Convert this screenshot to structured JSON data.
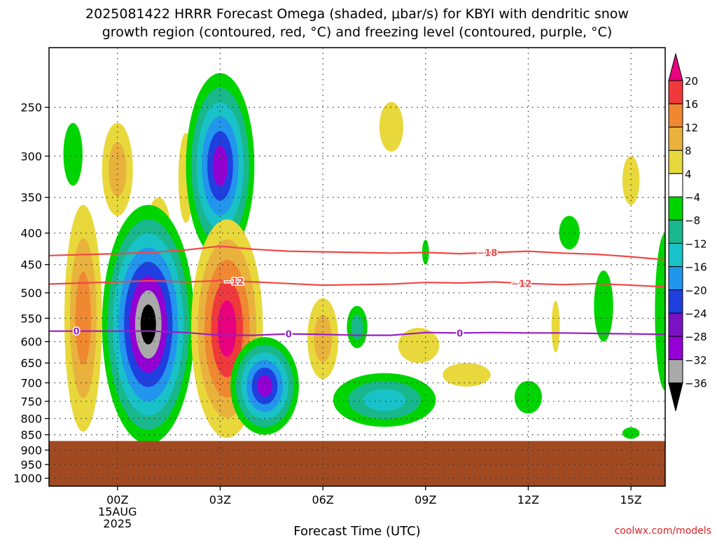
{
  "chart_data": {
    "type": "heatmap",
    "title_line1": "2025081422 HRRR Forecast Omega (shaded, μbar/s) for KBYI with dendritic snow",
    "title_line2": "growth region (contoured, red, °C) and freezing level (contoured, purple, °C)",
    "xlabel": "Forecast Time (UTC)",
    "credit": "coolwx.com/models",
    "x_ticks": [
      {
        "hour": 0,
        "label": "00Z"
      },
      {
        "hour": 3,
        "label": "03Z"
      },
      {
        "hour": 6,
        "label": "06Z"
      },
      {
        "hour": 9,
        "label": "09Z"
      },
      {
        "hour": 12,
        "label": "12Z"
      },
      {
        "hour": 15,
        "label": "15Z"
      }
    ],
    "x_date_lines": [
      "15AUG",
      "2025"
    ],
    "x_range_hours": [
      -2,
      16
    ],
    "y_ticks": [
      250,
      300,
      350,
      400,
      450,
      500,
      550,
      600,
      650,
      700,
      750,
      800,
      850,
      900,
      950,
      1000
    ],
    "y_range_hpa": [
      200,
      1030
    ],
    "y_scale": "log-pressure (reversed)",
    "ground_top_hpa": 870,
    "colorbar": {
      "labels": [
        "20",
        "16",
        "12",
        "8",
        "4",
        "−4",
        "−8",
        "−12",
        "−16",
        "−20",
        "−24",
        "−28",
        "−32",
        "−36"
      ],
      "colors": [
        "#e8007f",
        "#f0393c",
        "#ef8830",
        "#e9b23d",
        "#e8d83b",
        "#ffffff",
        "#00d400",
        "#18b88c",
        "#18c2c8",
        "#2295ec",
        "#1f3fe0",
        "#7a12c4",
        "#9400d3",
        "#a9a9a9",
        "#000000"
      ]
    },
    "contours": [
      {
        "kind": "dendritic",
        "label": "−18",
        "color": "#f04848",
        "points": [
          [
            -2,
            435
          ],
          [
            0,
            432
          ],
          [
            1,
            430
          ],
          [
            2,
            426
          ],
          [
            3,
            420
          ],
          [
            4,
            425
          ],
          [
            5,
            428
          ],
          [
            6,
            429
          ],
          [
            7,
            430
          ],
          [
            8,
            431
          ],
          [
            9,
            430
          ],
          [
            10,
            432
          ],
          [
            11,
            430
          ],
          [
            12,
            428
          ],
          [
            13,
            431
          ],
          [
            14,
            433
          ],
          [
            15,
            437
          ],
          [
            16,
            442
          ]
        ]
      },
      {
        "kind": "dendritic",
        "label": "−12",
        "color": "#f04848",
        "points": [
          [
            -2,
            484
          ],
          [
            0,
            480
          ],
          [
            1,
            478
          ],
          [
            2,
            480
          ],
          [
            3,
            478
          ],
          [
            4,
            480
          ],
          [
            5,
            483
          ],
          [
            6,
            486
          ],
          [
            7,
            485
          ],
          [
            8,
            484
          ],
          [
            9,
            481
          ],
          [
            10,
            482
          ],
          [
            11,
            480
          ],
          [
            12,
            483
          ],
          [
            13,
            485
          ],
          [
            14,
            483
          ],
          [
            15,
            486
          ],
          [
            16,
            489
          ]
        ]
      },
      {
        "kind": "freezing",
        "label": "0",
        "color": "#9a1fc4",
        "points": [
          [
            -2,
            577
          ],
          [
            0,
            577
          ],
          [
            1,
            577
          ],
          [
            2,
            580
          ],
          [
            3,
            586
          ],
          [
            4,
            586
          ],
          [
            5,
            583
          ],
          [
            6,
            584
          ],
          [
            7,
            586
          ],
          [
            8,
            586
          ],
          [
            9,
            580
          ],
          [
            10,
            581
          ],
          [
            11,
            580
          ],
          [
            12,
            581
          ],
          [
            13,
            581
          ],
          [
            14,
            582
          ],
          [
            15,
            583
          ],
          [
            16,
            584
          ]
        ]
      }
    ],
    "contour_labels": [
      {
        "line": 0,
        "hour": 10.8,
        "text": "−18"
      },
      {
        "line": 1,
        "hour": 3.4,
        "text": "−12"
      },
      {
        "line": 1,
        "hour": 11.8,
        "text": "−12"
      },
      {
        "line": 2,
        "hour": -1.2,
        "text": "0"
      },
      {
        "line": 2,
        "hour": 5.0,
        "text": "0"
      },
      {
        "line": 2,
        "hour": 10.0,
        "text": "0"
      }
    ],
    "omega_blobs": [
      {
        "hour": -1.3,
        "p": 300,
        "rh": 0.28,
        "rp": 35,
        "levels": [
          -8
        ]
      },
      {
        "hour": 0.0,
        "p": 320,
        "rh": 0.45,
        "rp": 55,
        "levels": [
          4,
          8
        ]
      },
      {
        "hour": 1.2,
        "p": 400,
        "rh": 0.35,
        "rp": 50,
        "levels": [
          4
        ]
      },
      {
        "hour": 2.0,
        "p": 330,
        "rh": 0.22,
        "rp": 55,
        "levels": [
          4
        ]
      },
      {
        "hour": -1.0,
        "p": 600,
        "rh": 0.55,
        "rp": 240,
        "levels": [
          4,
          8,
          12
        ]
      },
      {
        "hour": 0.9,
        "p": 620,
        "rh": 1.35,
        "rp": 260,
        "levels": [
          -8,
          -12,
          -16,
          -20,
          -24,
          -28,
          -32,
          -36
        ]
      },
      {
        "hour": 3.0,
        "p": 330,
        "rh": 1.0,
        "rp": 110,
        "levels": [
          -8,
          -12,
          -16,
          -20,
          -24,
          -28
        ]
      },
      {
        "hour": 3.2,
        "p": 620,
        "rh": 1.05,
        "rp": 240,
        "levels": [
          4,
          8,
          12,
          16,
          20
        ]
      },
      {
        "hour": 4.3,
        "p": 720,
        "rh": 1.0,
        "rp": 130,
        "levels": [
          -8,
          -12,
          -16,
          -20,
          -24,
          -28
        ]
      },
      {
        "hour": 6.0,
        "p": 600,
        "rh": 0.45,
        "rp": 90,
        "levels": [
          4,
          8
        ]
      },
      {
        "hour": 7.0,
        "p": 570,
        "rh": 0.3,
        "rp": 45,
        "levels": [
          -8,
          -12
        ]
      },
      {
        "hour": 7.8,
        "p": 750,
        "rh": 1.5,
        "rp": 75,
        "levels": [
          -8,
          -12,
          -16
        ]
      },
      {
        "hour": 8.0,
        "p": 270,
        "rh": 0.35,
        "rp": 25,
        "levels": [
          4
        ]
      },
      {
        "hour": 8.8,
        "p": 610,
        "rh": 0.6,
        "rp": 40,
        "levels": [
          4
        ]
      },
      {
        "hour": 9.0,
        "p": 430,
        "rh": 0.1,
        "rp": 20,
        "levels": [
          -8
        ]
      },
      {
        "hour": 10.2,
        "p": 680,
        "rh": 0.7,
        "rp": 30,
        "levels": [
          4
        ]
      },
      {
        "hour": 12.0,
        "p": 740,
        "rh": 0.4,
        "rp": 45,
        "levels": [
          -8
        ]
      },
      {
        "hour": 12.8,
        "p": 570,
        "rh": 0.12,
        "rp": 55,
        "levels": [
          4
        ]
      },
      {
        "hour": 13.2,
        "p": 400,
        "rh": 0.3,
        "rp": 25,
        "levels": [
          -8
        ]
      },
      {
        "hour": 14.2,
        "p": 530,
        "rh": 0.28,
        "rp": 70,
        "levels": [
          -8
        ]
      },
      {
        "hour": 15.0,
        "p": 330,
        "rh": 0.25,
        "rp": 30,
        "levels": [
          4
        ]
      },
      {
        "hour": 15.0,
        "p": 845,
        "rh": 0.25,
        "rp": 18,
        "levels": [
          -8
        ]
      },
      {
        "hour": 16.0,
        "p": 560,
        "rh": 0.3,
        "rp": 160,
        "levels": [
          -8
        ]
      }
    ]
  }
}
